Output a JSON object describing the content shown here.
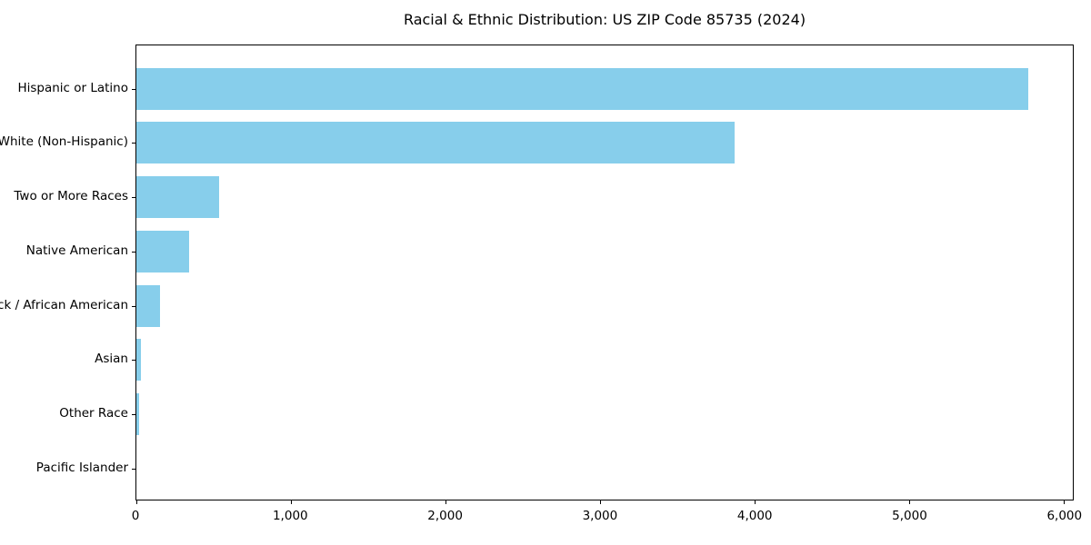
{
  "chart_data": {
    "type": "bar",
    "orientation": "horizontal",
    "title": "Racial & Ethnic Distribution: US ZIP Code 85735 (2024)",
    "categories": [
      "Hispanic or Latino",
      "White (Non-Hispanic)",
      "Two or More Races",
      "Native American",
      "Black / African American",
      "Asian",
      "Other Race",
      "Pacific Islander"
    ],
    "values": [
      5770,
      3870,
      535,
      340,
      155,
      30,
      20,
      0
    ],
    "xlabel": "",
    "ylabel": "",
    "xlim": [
      0,
      6060
    ],
    "x_ticks": [
      {
        "value": 0,
        "label": "0"
      },
      {
        "value": 1000,
        "label": "1,000"
      },
      {
        "value": 2000,
        "label": "2,000"
      },
      {
        "value": 3000,
        "label": "3,000"
      },
      {
        "value": 4000,
        "label": "4,000"
      },
      {
        "value": 5000,
        "label": "5,000"
      },
      {
        "value": 6000,
        "label": "6,000"
      }
    ],
    "grid": false,
    "legend": "none",
    "bar_color": "#87CEEB",
    "axis_color": "#000000",
    "background_color": "#ffffff"
  }
}
